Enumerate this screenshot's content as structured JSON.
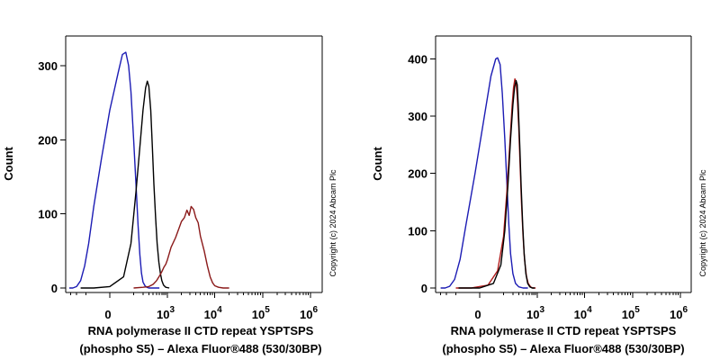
{
  "chart_data": [
    {
      "type": "line",
      "panel": "left",
      "ylabel": "Count",
      "xlabel_line1": "RNA polymerase II CTD repeat YSPTSPS",
      "xlabel_line2": "(phospho S5) – Alexa Fluor®488 (530/30BP)",
      "copyright": "Copyright (c) 2024 Abcam Plc",
      "x_scale": "biexponential",
      "ylim": [
        0,
        340
      ],
      "x_tick_labels": [
        {
          "value": 0,
          "base": "0",
          "exp": ""
        },
        {
          "value": 1000,
          "base": "10",
          "exp": "3"
        },
        {
          "value": 10000,
          "base": "10",
          "exp": "4"
        },
        {
          "value": 100000,
          "base": "10",
          "exp": "5"
        },
        {
          "value": 1000000,
          "base": "10",
          "exp": "6"
        }
      ],
      "y_ticks": [
        0,
        100,
        200,
        300
      ],
      "series": [
        {
          "name": "blue",
          "color": "#1c1cb4",
          "x": [
            -330,
            -260,
            -200,
            -150,
            -110,
            -80,
            -50,
            -20,
            0,
            20,
            35,
            50,
            65,
            80,
            100,
            120,
            140,
            160,
            180,
            200,
            230,
            260,
            300,
            360,
            450,
            600
          ],
          "y": [
            0,
            0,
            2,
            10,
            30,
            60,
            110,
            175,
            240,
            290,
            315,
            318,
            300,
            265,
            200,
            140,
            85,
            45,
            20,
            8,
            3,
            1,
            0,
            0,
            0,
            0
          ]
        },
        {
          "name": "black",
          "color": "#000000",
          "x": [
            -150,
            -50,
            0,
            40,
            80,
            120,
            160,
            200,
            240,
            270,
            300,
            340,
            380,
            420,
            470,
            520,
            580,
            640,
            700,
            780,
            900,
            1100
          ],
          "y": [
            0,
            0,
            2,
            15,
            60,
            130,
            190,
            240,
            270,
            279,
            272,
            240,
            190,
            140,
            95,
            60,
            35,
            20,
            10,
            4,
            1,
            0
          ]
        },
        {
          "name": "red",
          "color": "#8b1a1a",
          "x": [
            100,
            200,
            300,
            400,
            500,
            600,
            700,
            800,
            900,
            1000,
            1200,
            1500,
            1800,
            2000,
            2300,
            2600,
            2900,
            3200,
            3600,
            4000,
            4500,
            5000,
            6000,
            7000,
            8000,
            9000,
            10000,
            12000,
            15000,
            20000
          ],
          "y": [
            0,
            1,
            2,
            5,
            10,
            16,
            22,
            28,
            32,
            38,
            55,
            68,
            82,
            90,
            95,
            105,
            98,
            110,
            106,
            95,
            88,
            70,
            50,
            30,
            15,
            7,
            3,
            1,
            0,
            0
          ]
        }
      ]
    },
    {
      "type": "line",
      "panel": "right",
      "ylabel": "Count",
      "xlabel_line1": "RNA polymerase II CTD repeat YSPTSPS",
      "xlabel_line2": "(phospho S5) – Alexa Fluor®488 (530/30BP)",
      "copyright": "Copyright (c) 2024 Abcam Plc",
      "x_scale": "biexponential",
      "ylim": [
        0,
        440
      ],
      "x_tick_labels": [
        {
          "value": 0,
          "base": "0",
          "exp": ""
        },
        {
          "value": 1000,
          "base": "10",
          "exp": "3"
        },
        {
          "value": 10000,
          "base": "10",
          "exp": "4"
        },
        {
          "value": 100000,
          "base": "10",
          "exp": "5"
        },
        {
          "value": 1000000,
          "base": "10",
          "exp": "6"
        }
      ],
      "y_ticks": [
        0,
        100,
        200,
        300,
        400
      ],
      "series": [
        {
          "name": "blue",
          "color": "#1c1cb4",
          "x": [
            -300,
            -220,
            -160,
            -110,
            -70,
            -40,
            -10,
            10,
            30,
            50,
            60,
            75,
            90,
            110,
            130,
            150,
            170,
            200,
            240,
            300,
            400,
            550
          ],
          "y": [
            0,
            0,
            3,
            15,
            50,
            110,
            200,
            300,
            370,
            400,
            402,
            390,
            340,
            260,
            180,
            110,
            60,
            25,
            8,
            2,
            0,
            0
          ]
        },
        {
          "name": "red",
          "color": "#b01c1c",
          "x": [
            -100,
            -20,
            20,
            60,
            100,
            130,
            160,
            190,
            210,
            230,
            250,
            270,
            300,
            330,
            360,
            400,
            440,
            500,
            560,
            650,
            750,
            900
          ],
          "y": [
            0,
            0,
            5,
            30,
            90,
            170,
            250,
            320,
            350,
            365,
            360,
            335,
            280,
            210,
            150,
            90,
            50,
            20,
            8,
            2,
            0,
            0
          ]
        },
        {
          "name": "black",
          "color": "#000000",
          "x": [
            -80,
            0,
            40,
            80,
            110,
            140,
            170,
            200,
            225,
            250,
            270,
            290,
            320,
            350,
            390,
            430,
            480,
            540,
            620,
            720,
            850
          ],
          "y": [
            0,
            0,
            8,
            40,
            100,
            180,
            260,
            320,
            350,
            362,
            355,
            320,
            250,
            180,
            110,
            60,
            25,
            8,
            2,
            0,
            0
          ]
        }
      ]
    }
  ]
}
